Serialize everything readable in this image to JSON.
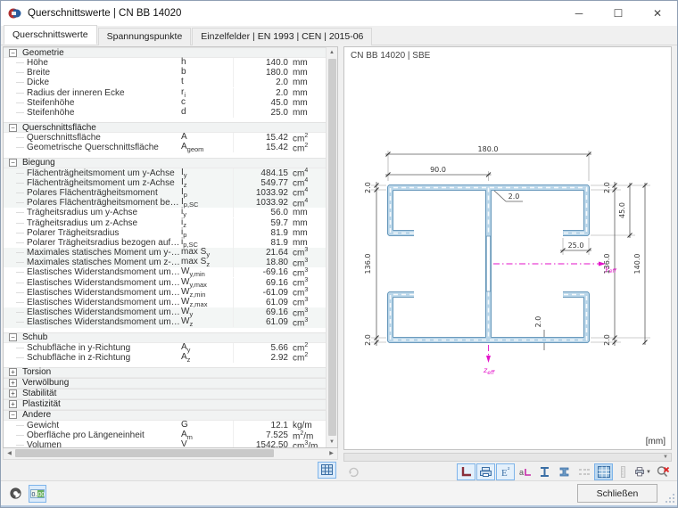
{
  "window": {
    "title": "Querschnittswerte | CN BB 14020"
  },
  "tabs": [
    {
      "label": "Querschnittswerte",
      "active": true
    },
    {
      "label": "Spannungspunkte",
      "active": false
    },
    {
      "label": "Einzelfelder | EN 1993 | CEN | 2015-06",
      "active": false
    }
  ],
  "table": {
    "sections": [
      {
        "name": "Geometrie",
        "expanded": true,
        "rows": [
          {
            "label": "Höhe",
            "sym": "h",
            "sub": "",
            "value": "140.0",
            "unit": "mm"
          },
          {
            "label": "Breite",
            "sym": "b",
            "sub": "",
            "value": "180.0",
            "unit": "mm"
          },
          {
            "label": "Dicke",
            "sym": "t",
            "sub": "",
            "value": "2.0",
            "unit": "mm"
          },
          {
            "label": "Radius der inneren Ecke",
            "sym": "r",
            "sub": "i",
            "value": "2.0",
            "unit": "mm"
          },
          {
            "label": "Steifenhöhe",
            "sym": "c",
            "sub": "",
            "value": "45.0",
            "unit": "mm"
          },
          {
            "label": "Steifenhöhe",
            "sym": "d",
            "sub": "",
            "value": "25.0",
            "unit": "mm"
          }
        ]
      },
      {
        "name": "Querschnittsfläche",
        "expanded": true,
        "rows": [
          {
            "label": "Querschnittsfläche",
            "sym": "A",
            "sub": "",
            "value": "15.42",
            "unit": "cm2"
          },
          {
            "label": "Geometrische Querschnittsfläche",
            "sym": "A",
            "sub": "geom",
            "value": "15.42",
            "unit": "cm2"
          }
        ]
      },
      {
        "name": "Biegung",
        "expanded": true,
        "rows": [
          {
            "label": "Flächenträgheitsmoment um y-Achse",
            "sym": "I",
            "sub": "y",
            "value": "484.15",
            "unit": "cm4",
            "shade": true
          },
          {
            "label": "Flächenträgheitsmoment um z-Achse",
            "sym": "I",
            "sub": "z",
            "value": "549.77",
            "unit": "cm4",
            "shade": true
          },
          {
            "label": "Polares Flächenträgheitsmoment",
            "sym": "I",
            "sub": "p",
            "value": "1033.92",
            "unit": "cm4",
            "shade": true
          },
          {
            "label": "Polares Flächenträgheitsmoment bezogen auf den Schubmittelpunkt",
            "sym": "I",
            "sub": "p,SC",
            "value": "1033.92",
            "unit": "cm4",
            "shade": true
          },
          {
            "label": "Trägheitsradius um y-Achse",
            "sym": "i",
            "sub": "y",
            "value": "56.0",
            "unit": "mm"
          },
          {
            "label": "Trägheitsradius um z-Achse",
            "sym": "i",
            "sub": "z",
            "value": "59.7",
            "unit": "mm"
          },
          {
            "label": "Polarer Trägheitsradius",
            "sym": "i",
            "sub": "p",
            "value": "81.9",
            "unit": "mm"
          },
          {
            "label": "Polarer Trägheitsradius bezogen auf den Schubmittelpunkt",
            "sym": "i",
            "sub": "p,SC",
            "value": "81.9",
            "unit": "mm"
          },
          {
            "label": "Maximales statisches Moment um y-Achse",
            "sym": "max S",
            "sub": "y",
            "value": "21.64",
            "unit": "cm3",
            "shade": true
          },
          {
            "label": "Maximales statisches Moment um z-Achse",
            "sym": "max S",
            "sub": "z",
            "value": "18.80",
            "unit": "cm3",
            "shade": true
          },
          {
            "label": "Elastisches Widerstandsmoment um y-Achse",
            "sym": "W",
            "sub": "y,min",
            "value": "-69.16",
            "unit": "cm3"
          },
          {
            "label": "Elastisches Widerstandsmoment um y-Achse",
            "sym": "W",
            "sub": "y,max",
            "value": "69.16",
            "unit": "cm3"
          },
          {
            "label": "Elastisches Widerstandsmoment um z-Achse",
            "sym": "W",
            "sub": "z,min",
            "value": "-61.09",
            "unit": "cm3"
          },
          {
            "label": "Elastisches Widerstandsmoment um z-Achse",
            "sym": "W",
            "sub": "z,max",
            "value": "61.09",
            "unit": "cm3"
          },
          {
            "label": "Elastisches Widerstandsmoment um y-Achse",
            "sym": "W",
            "sub": "y",
            "value": "69.16",
            "unit": "cm3",
            "shade": true
          },
          {
            "label": "Elastisches Widerstandsmoment um z-Achse",
            "sym": "W",
            "sub": "z",
            "value": "61.09",
            "unit": "cm3",
            "shade": true
          }
        ]
      },
      {
        "name": "Schub",
        "expanded": true,
        "rows": [
          {
            "label": "Schubfläche in y-Richtung",
            "sym": "A",
            "sub": "y",
            "value": "5.66",
            "unit": "cm2"
          },
          {
            "label": "Schubfläche in z-Richtung",
            "sym": "A",
            "sub": "z",
            "value": "2.92",
            "unit": "cm2"
          }
        ]
      },
      {
        "name": "Torsion",
        "expanded": false,
        "rows": []
      },
      {
        "name": "Verwölbung",
        "expanded": false,
        "rows": []
      },
      {
        "name": "Stabilität",
        "expanded": false,
        "rows": []
      },
      {
        "name": "Plastizität",
        "expanded": false,
        "rows": []
      },
      {
        "name": "Andere",
        "expanded": true,
        "rows": [
          {
            "label": "Gewicht",
            "sym": "G",
            "sub": "",
            "value": "12.1",
            "unit": "kg/m"
          },
          {
            "label": "Oberfläche pro Längeneinheit",
            "sym": "A",
            "sub": "m",
            "value": "7.525",
            "unit": "m2/m"
          },
          {
            "label": "Volumen",
            "sym": "V",
            "sub": "",
            "value": "1542.50",
            "unit": "cm3/m"
          }
        ]
      }
    ]
  },
  "viewer": {
    "header": "CN BB 14020 | SBE",
    "units_label": "[mm]",
    "dims": {
      "total_width": "180.0",
      "half_width": "90.0",
      "thickness": "2.0",
      "stiffener_c": "45.0",
      "lip_d": "25.0",
      "inner_height": "136.0",
      "total_height": "140.0"
    },
    "axes": {
      "y_main": "y",
      "y_sub": "eff",
      "z_main": "z",
      "z_sub": "eff"
    },
    "toolbar_icons": [
      "corner-axes-icon",
      "dimensions-icon",
      "elastic-values-icon",
      "annotation-icon",
      "ibeam-outline-icon",
      "ibeam-solid-icon",
      "hidden-lines-icon",
      "grid-icon",
      "ruler-icon",
      "print-icon",
      "zoom-reset-icon"
    ],
    "colors": {
      "profile_fill": "#bad6e9",
      "profile_border": "#4f87ae",
      "axis_magenta": "#e312c9"
    }
  },
  "statusbar": {
    "close_label": "Schließen",
    "icons": [
      "info-icon",
      "units-settings-icon"
    ]
  }
}
